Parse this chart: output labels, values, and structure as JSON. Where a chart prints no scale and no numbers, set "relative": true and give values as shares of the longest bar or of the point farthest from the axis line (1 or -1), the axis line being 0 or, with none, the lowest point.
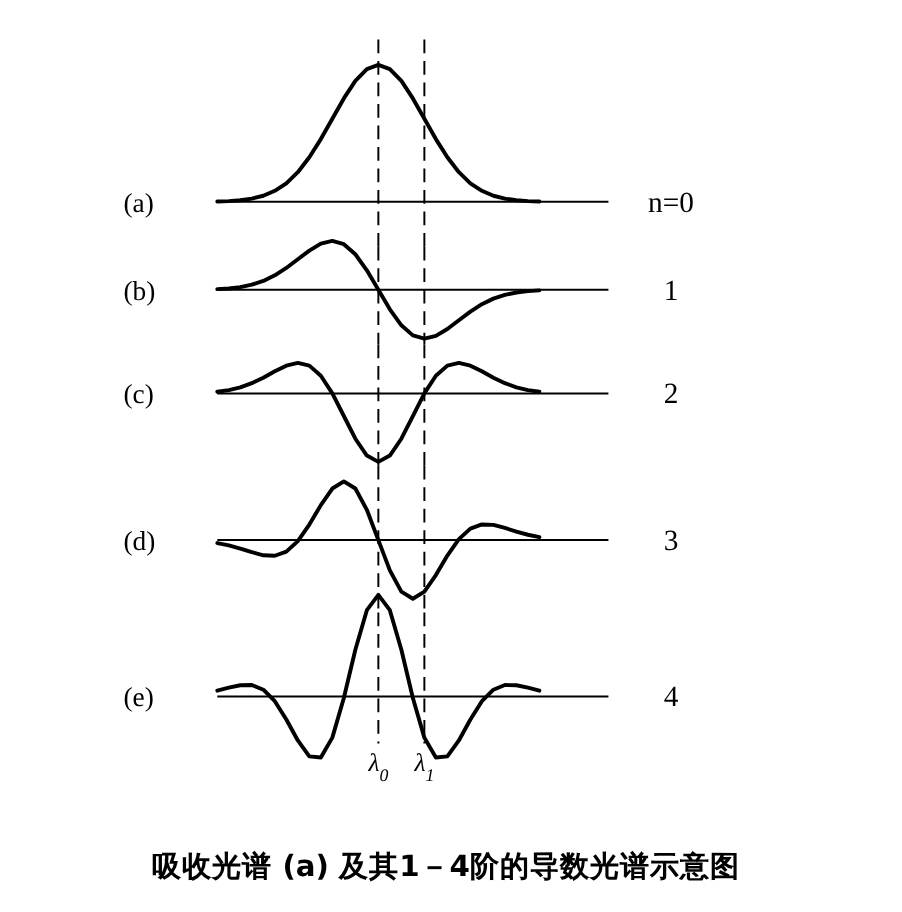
{
  "chart_data": [
    {
      "type": "line",
      "title": "(a)",
      "annotations": [
        "n=0"
      ],
      "relative": true,
      "tick_labels": false,
      "categories": [
        null,
        null,
        null,
        null,
        null,
        null,
        null,
        null,
        null,
        null,
        null,
        null,
        null,
        null,
        "λ$_{0}$",
        null,
        null,
        null,
        "λ$_{1}$",
        null,
        null,
        null,
        null,
        null,
        null,
        null,
        null,
        null,
        null,
        null,
        null,
        null,
        null,
        null,
        null
      ],
      "color": "#000000",
      "values": [
        0.002,
        0.005,
        0.011,
        0.023,
        0.044,
        0.08,
        0.135,
        0.216,
        0.325,
        0.458,
        0.607,
        0.755,
        0.883,
        0.969,
        1,
        0.969,
        0.883,
        0.755,
        0.607,
        0.458,
        0.325,
        0.216,
        0.135,
        0.08,
        0.044,
        0.023,
        0.011,
        0.005,
        0.002,
        null,
        null,
        null,
        null,
        null,
        null
      ],
      "ref_lines": [
        {
          "axis": "x",
          "value": "λ$_{0}$",
          "line_style": "dashed"
        },
        {
          "axis": "x",
          "value": "λ$_{1}$",
          "line_style": "dashed"
        }
      ]
    },
    {
      "type": "line",
      "title": "(b)",
      "annotations": [
        "1"
      ],
      "relative": true,
      "tick_labels": false,
      "categories": [
        null,
        null,
        null,
        null,
        null,
        null,
        null,
        null,
        null,
        null,
        null,
        null,
        null,
        null,
        "λ$_{0}$",
        null,
        null,
        null,
        "λ$_{1}$",
        null,
        null,
        null,
        null,
        null,
        null,
        null,
        null,
        null,
        null,
        null,
        null,
        null,
        null,
        null,
        null
      ],
      "color": "#000000",
      "values": [
        0.013,
        0.027,
        0.055,
        0.104,
        0.181,
        0.295,
        0.446,
        0.624,
        0.802,
        0.943,
        1,
        0.933,
        0.727,
        0.399,
        0,
        -0.399,
        -0.727,
        -0.933,
        -1,
        -0.943,
        -0.802,
        -0.624,
        -0.446,
        -0.295,
        -0.181,
        -0.104,
        -0.055,
        -0.027,
        -0.013,
        null,
        null,
        null,
        null,
        null,
        null
      ],
      "ref_lines": [
        {
          "axis": "x",
          "value": "λ$_{0}$",
          "line_style": "dashed"
        },
        {
          "axis": "x",
          "value": "λ$_{1}$",
          "line_style": "dashed"
        }
      ]
    },
    {
      "type": "line",
      "title": "(c)",
      "annotations": [
        "2"
      ],
      "relative": true,
      "tick_labels": false,
      "categories": [
        null,
        null,
        null,
        null,
        null,
        null,
        null,
        null,
        null,
        null,
        null,
        null,
        null,
        null,
        "λ$_{0}$",
        null,
        null,
        null,
        "λ$_{1}$",
        null,
        null,
        null,
        null,
        null,
        null,
        null,
        null,
        null,
        null,
        null,
        null,
        null,
        null,
        null,
        null
      ],
      "color": "#000000",
      "values": [
        0.025,
        0.049,
        0.089,
        0.15,
        0.23,
        0.323,
        0.406,
        0.446,
        0.406,
        0.258,
        0,
        -0.33,
        -0.662,
        -0.908,
        -1,
        -0.908,
        -0.662,
        -0.33,
        0,
        0.258,
        0.406,
        0.446,
        0.406,
        0.323,
        0.23,
        0.15,
        0.089,
        0.049,
        0.025,
        null,
        null,
        null,
        null,
        null,
        null
      ],
      "ref_lines": [
        {
          "axis": "x",
          "value": "λ$_{0}$",
          "line_style": "dashed"
        },
        {
          "axis": "x",
          "value": "λ$_{1}$",
          "line_style": "dashed"
        }
      ]
    },
    {
      "type": "line",
      "title": "(d)",
      "annotations": [
        "3"
      ],
      "relative": true,
      "tick_labels": false,
      "categories": [
        null,
        null,
        null,
        null,
        null,
        null,
        null,
        null,
        null,
        null,
        null,
        null,
        null,
        null,
        "λ$_{0}$",
        null,
        null,
        null,
        "λ$_{1}$",
        null,
        null,
        null,
        null,
        null,
        null,
        null,
        null,
        null,
        null,
        null,
        null,
        null,
        null,
        null,
        null
      ],
      "color": "#000000",
      "values": [
        -0.051,
        -0.091,
        -0.145,
        -0.207,
        -0.259,
        -0.267,
        -0.196,
        -0.017,
        0.264,
        0.596,
        0.879,
        1,
        0.879,
        0.516,
        0,
        -0.516,
        -0.879,
        -1,
        -0.879,
        -0.596,
        -0.264,
        0.017,
        0.196,
        0.267,
        0.259,
        0.207,
        0.145,
        0.091,
        0.051,
        null,
        null,
        null,
        null,
        null,
        null
      ],
      "ref_lines": [
        {
          "axis": "x",
          "value": "λ$_{0}$",
          "line_style": "dashed"
        },
        {
          "axis": "x",
          "value": "λ$_{1}$",
          "line_style": "dashed"
        }
      ]
    },
    {
      "type": "line",
      "title": "(e)",
      "annotations": [
        "4",
        "吸收光谱 (a) 及其1－4阶的导数光谱示意图"
      ],
      "relative": true,
      "tick_labels": "x",
      "categories": [
        null,
        null,
        null,
        null,
        null,
        null,
        null,
        null,
        null,
        null,
        null,
        null,
        null,
        null,
        "λ$_{0}$",
        null,
        null,
        null,
        "λ$_{1}$",
        null,
        null,
        null,
        null,
        null,
        null,
        null,
        null,
        null,
        null,
        null,
        null,
        null,
        null,
        null,
        null
      ],
      "color": "#000000",
      "values": [
        0.058,
        0.087,
        0.111,
        0.113,
        0.067,
        -0.046,
        -0.226,
        -0.432,
        -0.589,
        -0.6,
        -0.404,
        -0.015,
        0.46,
        0.849,
        1,
        0.849,
        0.46,
        -0.015,
        -0.404,
        -0.6,
        -0.589,
        -0.432,
        -0.226,
        -0.046,
        0.067,
        0.113,
        0.111,
        0.087,
        0.058,
        null,
        null,
        null,
        null,
        null,
        null
      ],
      "ref_lines": [
        {
          "axis": "x",
          "value": "λ$_{0}$",
          "line_style": "dashed"
        },
        {
          "axis": "x",
          "value": "λ$_{1}$",
          "line_style": "dashed"
        }
      ]
    }
  ]
}
